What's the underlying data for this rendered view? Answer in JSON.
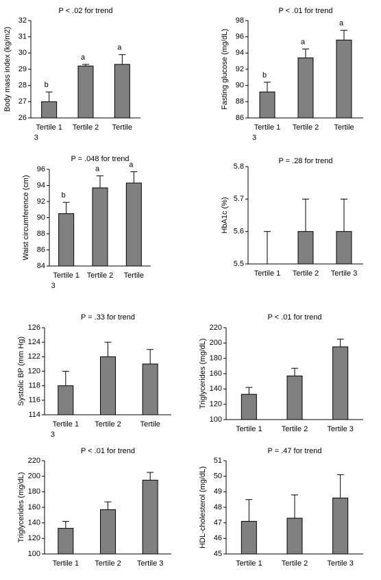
{
  "chart_data": [
    {
      "type": "bar",
      "title": "P < .02 for trend",
      "ylabel": "Body mass index (kg/m2)",
      "categories": [
        "Tertile 1",
        "Tertile 2",
        "Tertile"
      ],
      "extra_label": "3",
      "values": [
        27.0,
        29.2,
        29.3
      ],
      "errors": [
        0.6,
        0.1,
        0.6
      ],
      "annotations": [
        "b",
        "a",
        "a"
      ],
      "color": "#808080",
      "ylim": [
        26,
        32
      ],
      "yticks": [
        26,
        27,
        28,
        29,
        30,
        31,
        32
      ]
    },
    {
      "type": "bar",
      "title": "P < .01 for trend",
      "ylabel": "Fasting glucose (mg/dL)",
      "categories": [
        "Tertile 1",
        "Tertile 2",
        "Tertile"
      ],
      "extra_label": "3",
      "values": [
        89.2,
        93.4,
        95.6
      ],
      "errors": [
        1.2,
        1.1,
        1.2
      ],
      "annotations": [
        "b",
        "a",
        "a"
      ],
      "color": "#808080",
      "ylim": [
        86,
        98
      ],
      "yticks": [
        86,
        88,
        90,
        92,
        94,
        96,
        98
      ]
    },
    {
      "type": "bar",
      "title": "P = .048 for trend",
      "ylabel": "Waist circumference (cm)",
      "categories": [
        "Tertile 1",
        "Tertile 2",
        "Tertile"
      ],
      "extra_label": "3",
      "values": [
        90.5,
        93.7,
        94.3
      ],
      "errors": [
        1.4,
        1.5,
        1.4
      ],
      "annotations": [
        "b",
        "a",
        "a"
      ],
      "color": "#808080",
      "ylim": [
        84,
        96
      ],
      "yticks": [
        84,
        86,
        88,
        90,
        92,
        94,
        96
      ]
    },
    {
      "type": "bar",
      "title": "P = .28 for trend",
      "ylabel": "HbA1c (%)",
      "categories": [
        "Tertile 1",
        "Tertile 2",
        "Tertile 3"
      ],
      "values": [
        5.5,
        5.6,
        5.6
      ],
      "errors": [
        0.1,
        0.1,
        0.1
      ],
      "color": "#808080",
      "ylim": [
        5.5,
        5.8
      ],
      "yticks": [
        5.5,
        5.6,
        5.7,
        5.8
      ]
    },
    {
      "type": "bar",
      "title": "P = .33 for trend",
      "ylabel": "Systolic BP (mm Hg)",
      "categories": [
        "Tertile 1",
        "Tertile 2",
        "Tertile"
      ],
      "extra_label": "3",
      "values": [
        118,
        122,
        121
      ],
      "errors": [
        2,
        2,
        2
      ],
      "color": "#808080",
      "ylim": [
        114,
        126
      ],
      "yticks": [
        114,
        116,
        118,
        120,
        122,
        124,
        126
      ]
    },
    {
      "type": "bar",
      "title": "P < .01 for trend",
      "ylabel": "Triglycerides (mg/dL)",
      "categories": [
        "Tertile 1",
        "Tertile 2",
        "Tertile 3"
      ],
      "values": [
        133,
        157,
        195
      ],
      "errors": [
        9,
        10,
        10
      ],
      "color": "#808080",
      "ylim": [
        100,
        220
      ],
      "yticks": [
        100,
        120,
        140,
        160,
        180,
        200,
        220
      ]
    },
    {
      "type": "bar",
      "title": "P < .01 for trend",
      "ylabel": "Triglycerides (mg/dL)",
      "categories": [
        "Tertile 1",
        "Tertile 2",
        "Tertile 3"
      ],
      "values": [
        133,
        157,
        195
      ],
      "errors": [
        9,
        10,
        10
      ],
      "color": "#808080",
      "ylim": [
        100,
        220
      ],
      "yticks": [
        100,
        120,
        140,
        160,
        180,
        200,
        220
      ]
    },
    {
      "type": "bar",
      "title": "P = .47 for trend",
      "ylabel": "HDL-cholesterol (mg/dL)",
      "categories": [
        "Tertile 1",
        "Tertile 2",
        "Tertile 3"
      ],
      "values": [
        47.1,
        47.3,
        48.6
      ],
      "errors": [
        1.4,
        1.5,
        1.5
      ],
      "color": "#808080",
      "ylim": [
        45,
        51
      ],
      "yticks": [
        45,
        46,
        47,
        48,
        49,
        50,
        51
      ]
    }
  ]
}
